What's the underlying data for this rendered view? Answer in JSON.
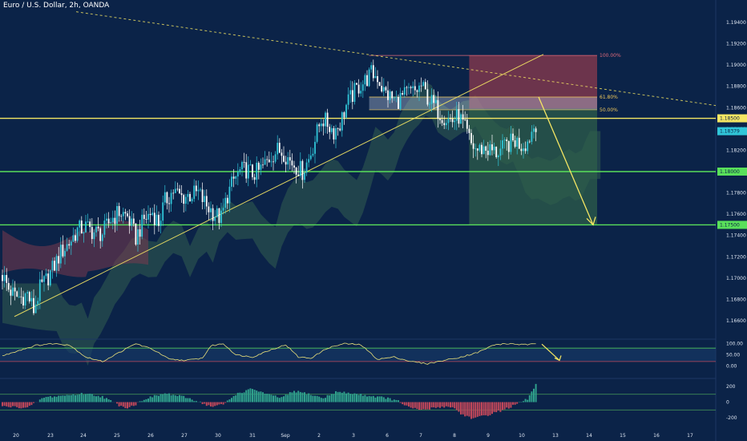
{
  "title": "Euro / U.S. Dollar, 2h, OANDA",
  "colors": {
    "background": "#0b2348",
    "bull": "#30c6d9",
    "bear": "#ffffff",
    "yellow": "#f5e663",
    "green": "#59e05a",
    "stop_zone": "#8e3b4e",
    "target_zone": "#2d5e4a",
    "cloud_bull": "#3a6a52",
    "cloud_bear": "#7a3a4e",
    "fib_text": "#f0c85a",
    "fib_top_text": "#e06a7a",
    "axis_text": "#dbe3ef",
    "hist_pos": "#2fa08c",
    "hist_neg": "#c0475a"
  },
  "chart_data": [
    {
      "type": "candlestick",
      "symbol": "Euro / U.S. Dollar",
      "timeframe": "2h",
      "source": "OANDA",
      "ylim": [
        1.1645,
        1.1955
      ],
      "y_ticks": [
        "1.19400",
        "1.19200",
        "1.19000",
        "1.18800",
        "1.18600",
        "1.18400",
        "1.18200",
        "1.17800",
        "1.17600",
        "1.17400",
        "1.17200",
        "1.17000",
        "1.16800",
        "1.16600"
      ],
      "x_ticks": [
        "20",
        "23",
        "24",
        "25",
        "26",
        "27",
        "30",
        "31",
        "Sep",
        "2",
        "3",
        "6",
        "7",
        "8",
        "9",
        "10",
        "13",
        "14",
        "15",
        "16",
        "17"
      ],
      "price_labels": [
        {
          "text": "1.18500",
          "value": 1.185,
          "style": "yellow"
        },
        {
          "text": "1.18379",
          "value": 1.18379,
          "style": "bull"
        },
        {
          "text": "1.18000",
          "value": 1.18,
          "style": "green"
        },
        {
          "text": "1.17500",
          "value": 1.175,
          "style": "green"
        }
      ],
      "horizontal_levels": [
        {
          "value": 1.185,
          "color": "yellow"
        },
        {
          "value": 1.18,
          "color": "green"
        },
        {
          "value": 1.175,
          "color": "green"
        }
      ],
      "fibonacci": [
        {
          "label": "100.00%",
          "value": 1.1909
        },
        {
          "label": "61.80%",
          "value": 1.187
        },
        {
          "label": "50.00%",
          "value": 1.1858
        }
      ],
      "position": {
        "direction": "short",
        "entry": 1.1859,
        "stop": 1.1909,
        "target": 1.175
      },
      "waypoints": [
        [
          0,
          1.1703
        ],
        [
          3,
          1.169
        ],
        [
          6,
          1.1683
        ],
        [
          9,
          1.1682
        ],
        [
          12,
          1.1685
        ],
        [
          15,
          1.167
        ],
        [
          18,
          1.169
        ],
        [
          21,
          1.1698
        ],
        [
          25,
          1.1712
        ],
        [
          28,
          1.1724
        ],
        [
          32,
          1.1733
        ],
        [
          36,
          1.1745
        ],
        [
          40,
          1.1748
        ],
        [
          44,
          1.1743
        ],
        [
          48,
          1.1742
        ],
        [
          52,
          1.1755
        ],
        [
          56,
          1.1762
        ],
        [
          60,
          1.1758
        ],
        [
          64,
          1.1738
        ],
        [
          68,
          1.1755
        ],
        [
          72,
          1.1762
        ],
        [
          75,
          1.1752
        ],
        [
          78,
          1.1772
        ],
        [
          82,
          1.1782
        ],
        [
          86,
          1.1776
        ],
        [
          90,
          1.1778
        ],
        [
          94,
          1.178
        ],
        [
          98,
          1.1768
        ],
        [
          102,
          1.176
        ],
        [
          105,
          1.1756
        ],
        [
          108,
          1.1778
        ],
        [
          111,
          1.1792
        ],
        [
          114,
          1.18
        ],
        [
          117,
          1.1802
        ],
        [
          120,
          1.1798
        ],
        [
          123,
          1.18
        ],
        [
          126,
          1.1807
        ],
        [
          129,
          1.1815
        ],
        [
          132,
          1.182
        ],
        [
          135,
          1.1818
        ],
        [
          138,
          1.181
        ],
        [
          141,
          1.1805
        ],
        [
          144,
          1.18
        ],
        [
          147,
          1.1812
        ],
        [
          150,
          1.183
        ],
        [
          153,
          1.185
        ],
        [
          156,
          1.1845
        ],
        [
          159,
          1.1838
        ],
        [
          162,
          1.1845
        ],
        [
          165,
          1.1862
        ],
        [
          168,
          1.1872
        ],
        [
          171,
          1.188
        ],
        [
          174,
          1.1885
        ],
        [
          177,
          1.1892
        ],
        [
          180,
          1.1889
        ],
        [
          183,
          1.1875
        ],
        [
          186,
          1.187
        ],
        [
          189,
          1.1866
        ],
        [
          192,
          1.187
        ],
        [
          195,
          1.1874
        ],
        [
          198,
          1.1875
        ],
        [
          201,
          1.188
        ],
        [
          204,
          1.187
        ],
        [
          207,
          1.1862
        ],
        [
          210,
          1.1855
        ],
        [
          213,
          1.185
        ],
        [
          216,
          1.1848
        ],
        [
          219,
          1.1852
        ],
        [
          222,
          1.184
        ],
        [
          225,
          1.1825
        ],
        [
          228,
          1.182
        ],
        [
          231,
          1.1822
        ],
        [
          234,
          1.182
        ],
        [
          237,
          1.1818
        ],
        [
          240,
          1.1821
        ],
        [
          243,
          1.1826
        ],
        [
          246,
          1.1829
        ],
        [
          249,
          1.1825
        ],
        [
          252,
          1.1828
        ],
        [
          254,
          1.1838
        ],
        [
          256,
          1.1846
        ]
      ],
      "forecast_arrow": {
        "from": 1.187,
        "to": 1.175
      }
    },
    {
      "type": "line",
      "name": "oscillator",
      "ylim": [
        -20,
        120
      ],
      "y_ticks": [
        "100.00",
        "50.00",
        "0.00"
      ],
      "levels": [
        80,
        20
      ],
      "waypoints": [
        [
          0,
          45
        ],
        [
          8,
          70
        ],
        [
          16,
          92
        ],
        [
          24,
          100
        ],
        [
          32,
          95
        ],
        [
          40,
          40
        ],
        [
          48,
          20
        ],
        [
          56,
          60
        ],
        [
          64,
          100
        ],
        [
          72,
          75
        ],
        [
          80,
          30
        ],
        [
          88,
          25
        ],
        [
          96,
          35
        ],
        [
          100,
          90
        ],
        [
          106,
          100
        ],
        [
          112,
          50
        ],
        [
          120,
          40
        ],
        [
          128,
          70
        ],
        [
          136,
          95
        ],
        [
          142,
          40
        ],
        [
          148,
          35
        ],
        [
          156,
          80
        ],
        [
          164,
          100
        ],
        [
          172,
          95
        ],
        [
          180,
          30
        ],
        [
          188,
          40
        ],
        [
          196,
          20
        ],
        [
          204,
          10
        ],
        [
          212,
          25
        ],
        [
          220,
          40
        ],
        [
          228,
          60
        ],
        [
          236,
          95
        ],
        [
          244,
          100
        ],
        [
          250,
          95
        ],
        [
          256,
          98
        ]
      ],
      "forecast_arrow": {
        "from": 98,
        "to": 25
      }
    },
    {
      "type": "bar",
      "name": "histogram",
      "ylim": [
        -260,
        260
      ],
      "y_ticks": [
        "200",
        "0",
        "-200"
      ],
      "levels": [
        100,
        -100
      ],
      "waypoints": [
        [
          0,
          -55
        ],
        [
          12,
          -70
        ],
        [
          16,
          -10
        ],
        [
          20,
          60
        ],
        [
          40,
          110
        ],
        [
          48,
          70
        ],
        [
          56,
          -40
        ],
        [
          60,
          -70
        ],
        [
          64,
          -30
        ],
        [
          68,
          40
        ],
        [
          78,
          110
        ],
        [
          88,
          60
        ],
        [
          94,
          10
        ],
        [
          100,
          -60
        ],
        [
          106,
          -30
        ],
        [
          112,
          100
        ],
        [
          120,
          170
        ],
        [
          128,
          90
        ],
        [
          134,
          55
        ],
        [
          140,
          140
        ],
        [
          146,
          110
        ],
        [
          154,
          50
        ],
        [
          160,
          130
        ],
        [
          168,
          110
        ],
        [
          176,
          80
        ],
        [
          184,
          55
        ],
        [
          190,
          10
        ],
        [
          196,
          -80
        ],
        [
          202,
          -100
        ],
        [
          210,
          -60
        ],
        [
          216,
          -60
        ],
        [
          220,
          -150
        ],
        [
          226,
          -210
        ],
        [
          232,
          -170
        ],
        [
          238,
          -120
        ],
        [
          244,
          -60
        ],
        [
          248,
          -10
        ],
        [
          252,
          40
        ],
        [
          256,
          220
        ]
      ]
    }
  ]
}
